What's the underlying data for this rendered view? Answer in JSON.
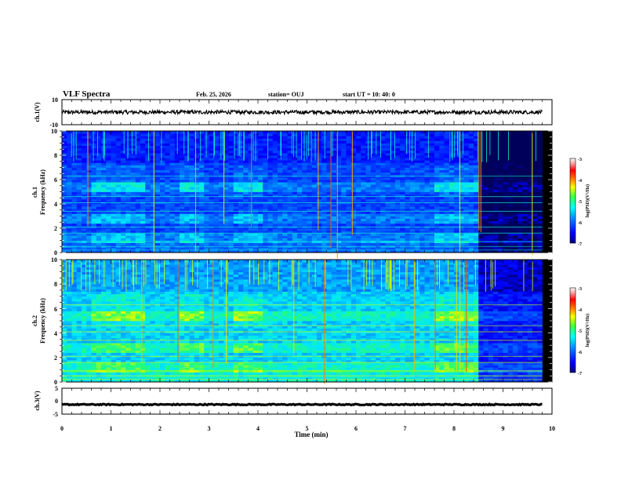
{
  "header": {
    "title": "VLF Spectra",
    "date": "Feb. 25, 2026",
    "station": "station= OUJ",
    "start": "start  UT =   10: 40: 0"
  },
  "colors": {
    "background": "#ffffff",
    "axis": "#000000",
    "colormap": [
      "#000080",
      "#0000ff",
      "#0060ff",
      "#00d0ff",
      "#20ff80",
      "#a0ff00",
      "#ffd000",
      "#ff4000",
      "#ff0000",
      "#ffc0c0",
      "#ffffff"
    ]
  },
  "chart_data": [
    {
      "type": "line",
      "name": "ch1-waveform",
      "ylabel": "ch.1(V)",
      "ylim": [
        -10,
        10
      ],
      "ytick_labels": [
        "10",
        "-10"
      ],
      "xlim": [
        0,
        10
      ],
      "series": [
        {
          "name": "ch.1",
          "mean": 0,
          "amplitude_range": [
            -1.5,
            1.5
          ]
        }
      ]
    },
    {
      "type": "heatmap",
      "name": "ch1-spectrogram",
      "ylabel_line1": "ch.1",
      "ylabel_line2": "Frequency (kHz)",
      "ylim": [
        0,
        10
      ],
      "ytick_labels": [
        "0",
        "2",
        "4",
        "6",
        "8",
        "10"
      ],
      "xlim": [
        0,
        10
      ],
      "colorbar": {
        "label": "log(PSD)(V²/Hz)",
        "range": [
          -7,
          -3
        ],
        "tick_labels": [
          "-3",
          "-4",
          "-5",
          "-6",
          "-7"
        ]
      },
      "data_end_min": 9.8,
      "quiet_after_min": 8.5,
      "bright_bands_khz": [
        5.4,
        2.8,
        1.2
      ],
      "time_bright_spans_min": [
        [
          0.6,
          1.7
        ],
        [
          2.4,
          2.9
        ],
        [
          3.5,
          4.1
        ],
        [
          7.6,
          8.5
        ]
      ]
    },
    {
      "type": "heatmap",
      "name": "ch2-spectrogram",
      "ylabel_line1": "ch.2",
      "ylabel_line2": "Frequency (kHz)",
      "ylim": [
        0,
        10
      ],
      "ytick_labels": [
        "0",
        "2",
        "4",
        "6",
        "8",
        "10"
      ],
      "xlim": [
        0,
        10
      ],
      "colorbar": {
        "label": "log(PSD)(V²/Hz)",
        "range": [
          -7,
          -3
        ],
        "tick_labels": [
          "-3",
          "-4",
          "-5",
          "-6",
          "-7"
        ]
      },
      "data_end_min": 9.8,
      "quiet_after_min": 8.5,
      "bright_bands_khz": [
        5.4,
        2.8,
        1.2
      ],
      "time_bright_spans_min": [
        [
          0.6,
          1.7
        ],
        [
          2.4,
          2.9
        ],
        [
          3.5,
          4.1
        ],
        [
          7.6,
          8.5
        ]
      ]
    },
    {
      "type": "line",
      "name": "ch3-waveform",
      "ylabel": "ch.3(V)",
      "ylim": [
        -5,
        5
      ],
      "ytick_labels": [
        "5",
        "0",
        "-5"
      ],
      "xlim": [
        0,
        10
      ],
      "series": [
        {
          "name": "ch.3",
          "mean": -1.3,
          "amplitude_range": [
            -0.2,
            0.2
          ]
        }
      ]
    }
  ],
  "xaxis": {
    "label": "Time (min)",
    "tick_labels": [
      "0",
      "1",
      "2",
      "3",
      "4",
      "5",
      "6",
      "7",
      "8",
      "9",
      "10"
    ]
  }
}
